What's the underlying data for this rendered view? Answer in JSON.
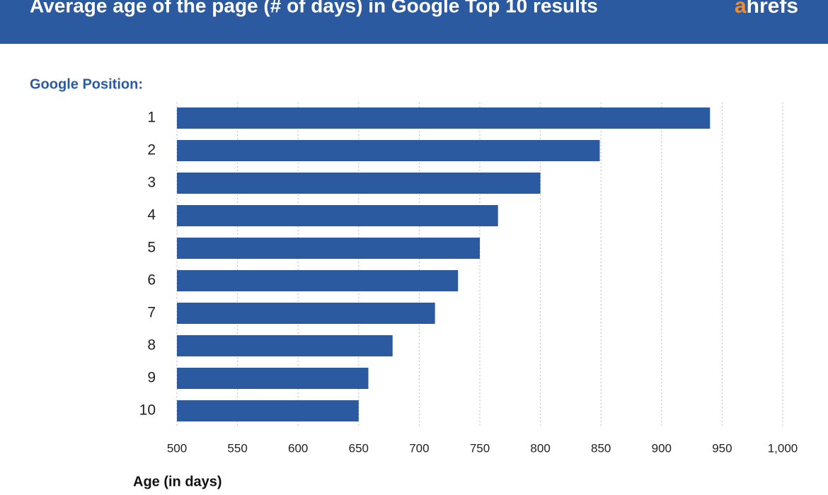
{
  "chart_data": {
    "type": "barh",
    "title": "Average age of the page (# of days) in Google Top 10 results",
    "logo": [
      "a",
      "hrefs"
    ],
    "y_label": "Google Position:",
    "x_label": "Age (in days)",
    "categories": [
      "1",
      "2",
      "3",
      "4",
      "5",
      "6",
      "7",
      "8",
      "9",
      "10"
    ],
    "values": [
      940,
      849,
      800,
      765,
      750,
      732,
      713,
      678,
      658,
      650
    ],
    "color": "#2c5aa0",
    "xlim": [
      500,
      1000
    ],
    "xticks": [
      500,
      550,
      600,
      650,
      700,
      750,
      800,
      850,
      900,
      950,
      {
        "value": 1000,
        "label": "1,000"
      }
    ],
    "grid": true
  }
}
